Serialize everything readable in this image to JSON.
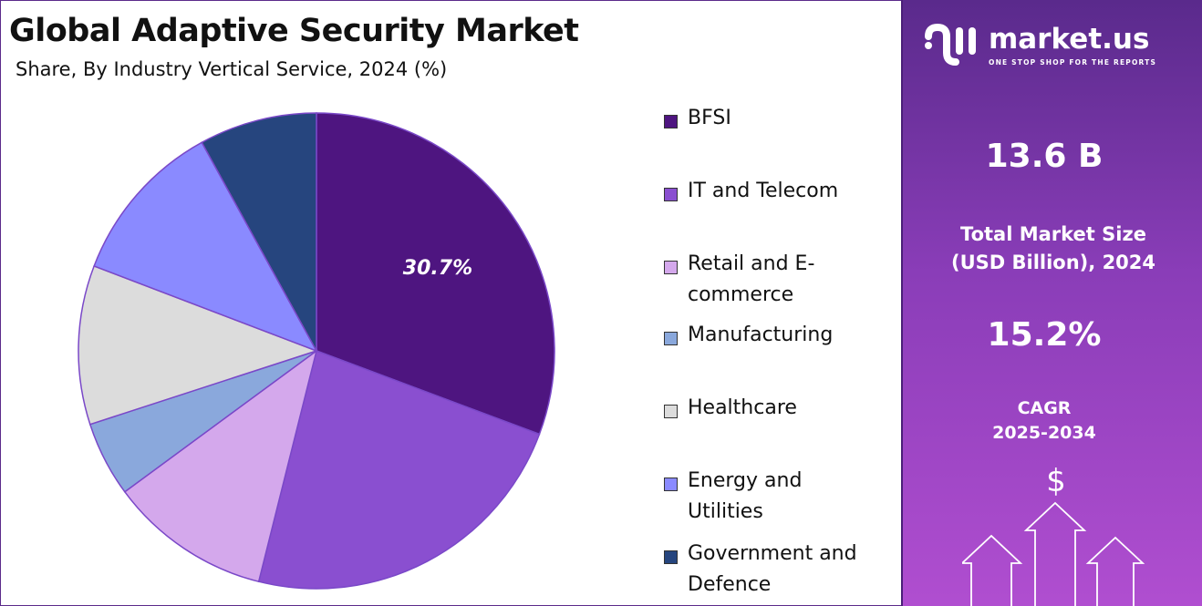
{
  "chart_data": {
    "type": "pie",
    "title": "Global Adaptive Security Market",
    "subtitle": "Share, By Industry Vertical Service, 2024 (%)",
    "categories": [
      "BFSI",
      "IT and Telecom",
      "Retail and E-commerce",
      "Manufacturing",
      "Healthcare",
      "Energy and Utilities",
      "Government and Defence"
    ],
    "legend_lines": [
      [
        "BFSI"
      ],
      [
        "IT and Telecom"
      ],
      [
        "Retail and E-",
        "commerce"
      ],
      [
        "Manufacturing"
      ],
      [
        "Healthcare"
      ],
      [
        "Energy and",
        "Utilities"
      ],
      [
        "Government and",
        "Defence"
      ]
    ],
    "values": [
      30.7,
      23.2,
      11.0,
      5.1,
      10.8,
      11.2,
      8.0
    ],
    "colors": [
      "#4e1580",
      "#8a4fd0",
      "#d4a8ec",
      "#8aa8dc",
      "#dcdcdc",
      "#8a8aff",
      "#26457e"
    ],
    "data_labels": {
      "BFSI": "30.7%"
    },
    "legend_position": "right"
  },
  "panel": {
    "brand": "market.us",
    "tagline": "ONE STOP SHOP FOR THE REPORTS",
    "market_size": "13.6 B",
    "market_size_label_1": "Total Market Size",
    "market_size_label_2": "(USD Billion), 2024",
    "cagr": "15.2%",
    "cagr_label_1": "CAGR",
    "cagr_label_2": "2025-2034",
    "currency_symbol": "$",
    "icon": "growth-arrows-icon"
  }
}
